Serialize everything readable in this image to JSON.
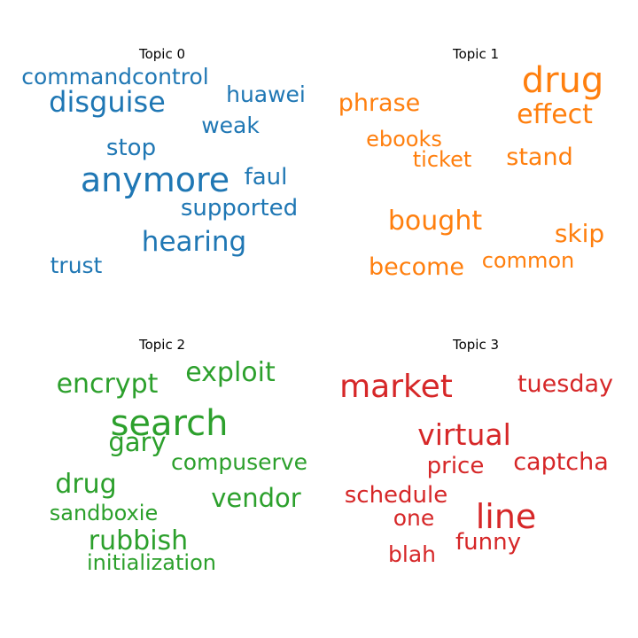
{
  "chart_data": {
    "type": "wordcloud",
    "panels": [
      {
        "title": "Topic 0",
        "color": "#1f77b4",
        "words": [
          {
            "text": "anymore",
            "weight": 1.0
          },
          {
            "text": "disguise",
            "weight": 0.82
          },
          {
            "text": "hearing",
            "weight": 0.8
          },
          {
            "text": "commandcontrol",
            "weight": 0.68
          },
          {
            "text": "huawei",
            "weight": 0.68
          },
          {
            "text": "faul",
            "weight": 0.68
          },
          {
            "text": "supported",
            "weight": 0.66
          },
          {
            "text": "trust",
            "weight": 0.65
          },
          {
            "text": "stop",
            "weight": 0.64
          },
          {
            "text": "weak",
            "weight": 0.64
          }
        ]
      },
      {
        "title": "Topic 1",
        "color": "#ff7f0e",
        "words": [
          {
            "text": "drug",
            "weight": 1.0
          },
          {
            "text": "effect",
            "weight": 0.8
          },
          {
            "text": "bought",
            "weight": 0.8
          },
          {
            "text": "skip",
            "weight": 0.75
          },
          {
            "text": "phrase",
            "weight": 0.72
          },
          {
            "text": "stand",
            "weight": 0.72
          },
          {
            "text": "become",
            "weight": 0.7
          },
          {
            "text": "ebooks",
            "weight": 0.62
          },
          {
            "text": "ticket",
            "weight": 0.62
          },
          {
            "text": "common",
            "weight": 0.62
          }
        ]
      },
      {
        "title": "Topic 2",
        "color": "#2ca02c",
        "words": [
          {
            "text": "search",
            "weight": 1.0
          },
          {
            "text": "exploit",
            "weight": 0.78
          },
          {
            "text": "encrypt",
            "weight": 0.78
          },
          {
            "text": "drug",
            "weight": 0.76
          },
          {
            "text": "rubbish",
            "weight": 0.76
          },
          {
            "text": "gary",
            "weight": 0.74
          },
          {
            "text": "vendor",
            "weight": 0.74
          },
          {
            "text": "compuserve",
            "weight": 0.64
          },
          {
            "text": "sandboxie",
            "weight": 0.64
          },
          {
            "text": "initialization",
            "weight": 0.64
          }
        ]
      },
      {
        "title": "Topic 3",
        "color": "#d62728",
        "words": [
          {
            "text": "line",
            "weight": 1.0
          },
          {
            "text": "market",
            "weight": 0.93
          },
          {
            "text": "virtual",
            "weight": 0.85
          },
          {
            "text": "tuesday",
            "weight": 0.75
          },
          {
            "text": "captcha",
            "weight": 0.75
          },
          {
            "text": "price",
            "weight": 0.72
          },
          {
            "text": "schedule",
            "weight": 0.72
          },
          {
            "text": "funny",
            "weight": 0.72
          },
          {
            "text": "one",
            "weight": 0.7
          },
          {
            "text": "blah",
            "weight": 0.7
          }
        ]
      }
    ]
  }
}
